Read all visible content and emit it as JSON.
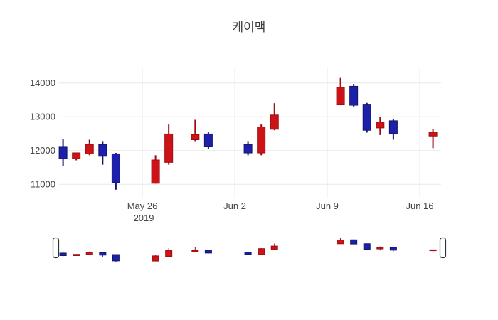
{
  "title": "케이맥",
  "chart_data": {
    "type": "candlestick",
    "title": "케이맥",
    "increasing_color": "#cc1317",
    "increasing_line_color": "#9c0d11",
    "decreasing_color": "#1d20ab",
    "decreasing_line_color": "#131563",
    "grid_color": "#e8e8e8",
    "ylabel": "",
    "xlabel": "",
    "ylim": [
      10600,
      14460
    ],
    "grid": true,
    "rangeslider": true,
    "yticks": [
      {
        "value": 14000,
        "label": "14000"
      },
      {
        "value": 13000,
        "label": "13000"
      },
      {
        "value": 12000,
        "label": "12000"
      },
      {
        "value": 11000,
        "label": "11000"
      }
    ],
    "xticks": [
      {
        "label": "May 26",
        "sublabel": "2019",
        "day_offset": 6
      },
      {
        "label": "Jun 2",
        "sublabel": "",
        "day_offset": 13
      },
      {
        "label": "Jun 9",
        "sublabel": "",
        "day_offset": 20
      },
      {
        "label": "Jun 16",
        "sublabel": "",
        "day_offset": 27
      }
    ],
    "candles": [
      {
        "date": "May 20",
        "day_offset": 0,
        "open": 12100,
        "high": 12350,
        "low": 11550,
        "close": 11760
      },
      {
        "date": "May 21",
        "day_offset": 1,
        "open": 11760,
        "high": 11940,
        "low": 11710,
        "close": 11930
      },
      {
        "date": "May 22",
        "day_offset": 2,
        "open": 11900,
        "high": 12320,
        "low": 11860,
        "close": 12180
      },
      {
        "date": "May 23",
        "day_offset": 3,
        "open": 12180,
        "high": 12280,
        "low": 11580,
        "close": 11830
      },
      {
        "date": "May 24",
        "day_offset": 4,
        "open": 11900,
        "high": 11930,
        "low": 10840,
        "close": 11050
      },
      {
        "date": "May 27",
        "day_offset": 7,
        "open": 11030,
        "high": 11860,
        "low": 11020,
        "close": 11720
      },
      {
        "date": "May 28",
        "day_offset": 8,
        "open": 11650,
        "high": 12770,
        "low": 11580,
        "close": 12490
      },
      {
        "date": "May 30",
        "day_offset": 10,
        "open": 12320,
        "high": 12910,
        "low": 12280,
        "close": 12470
      },
      {
        "date": "May 31",
        "day_offset": 11,
        "open": 12490,
        "high": 12540,
        "low": 12050,
        "close": 12110
      },
      {
        "date": "Jun 3",
        "day_offset": 14,
        "open": 12180,
        "high": 12280,
        "low": 11860,
        "close": 11930
      },
      {
        "date": "Jun 4",
        "day_offset": 15,
        "open": 11930,
        "high": 12770,
        "low": 11860,
        "close": 12700
      },
      {
        "date": "Jun 5",
        "day_offset": 16,
        "open": 12630,
        "high": 13400,
        "low": 12600,
        "close": 13050
      },
      {
        "date": "Jun 10",
        "day_offset": 21,
        "open": 13370,
        "high": 14170,
        "low": 13340,
        "close": 13870
      },
      {
        "date": "Jun 11",
        "day_offset": 22,
        "open": 13900,
        "high": 13970,
        "low": 13300,
        "close": 13340
      },
      {
        "date": "Jun 12",
        "day_offset": 23,
        "open": 13370,
        "high": 13410,
        "low": 12530,
        "close": 12600
      },
      {
        "date": "Jun 13",
        "day_offset": 24,
        "open": 12670,
        "high": 12990,
        "low": 12460,
        "close": 12840
      },
      {
        "date": "Jun 14",
        "day_offset": 25,
        "open": 12880,
        "high": 12940,
        "low": 12320,
        "close": 12500
      },
      {
        "date": "Jun 17",
        "day_offset": 28,
        "open": 12430,
        "high": 12630,
        "low": 12070,
        "close": 12540
      }
    ]
  }
}
